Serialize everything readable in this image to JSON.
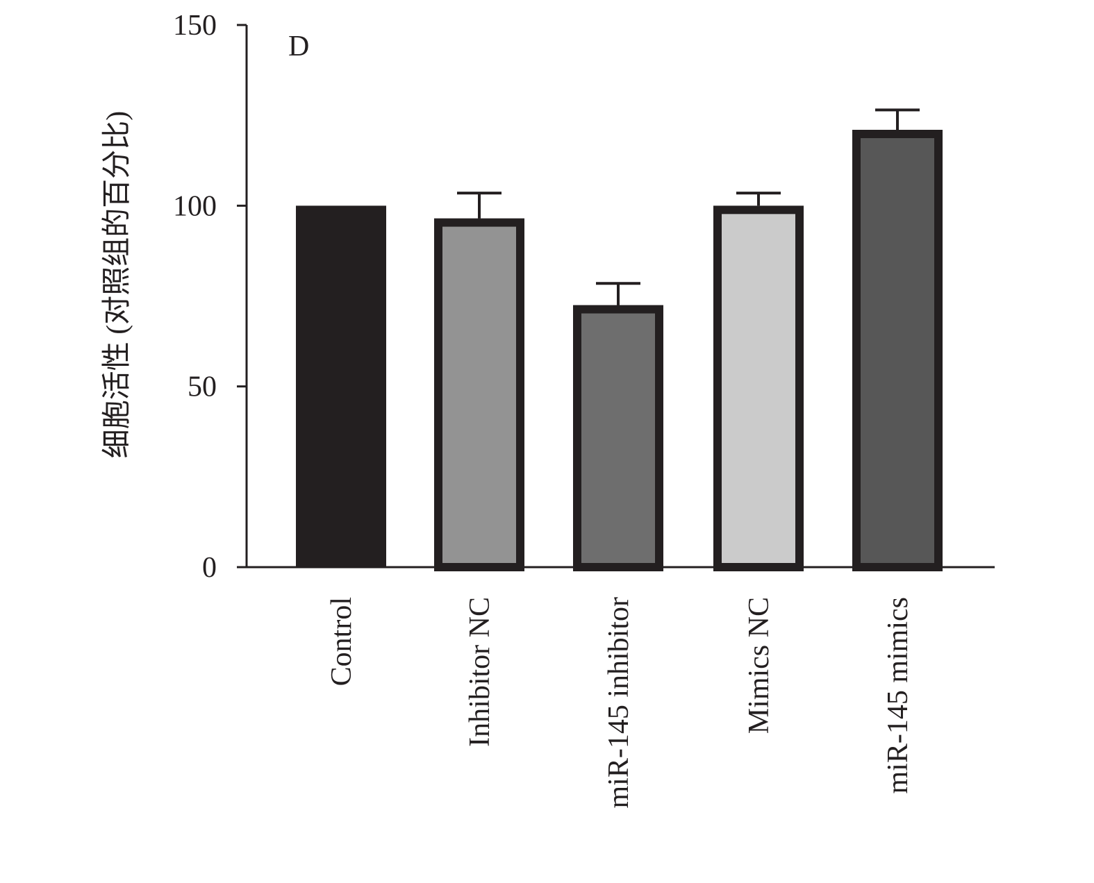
{
  "chart_data": {
    "type": "bar",
    "panel_label": "D",
    "title": "",
    "xlabel": "",
    "ylabel": "细胞活性 (对照组的百分比)",
    "ylim": [
      0,
      150
    ],
    "yticks": [
      0,
      50,
      100,
      150
    ],
    "grid": false,
    "legend": "none",
    "categories": [
      "Control",
      "Inhibitor NC",
      "miR-145 inhibitor",
      "Mimics NC",
      "miR-145 mimics"
    ],
    "values": [
      100,
      96.5,
      72.5,
      100,
      121
    ],
    "error_upper": [
      null,
      103.5,
      78.5,
      103.5,
      126.5
    ],
    "colors": [
      "#231f20",
      "#939393",
      "#6e6e6e",
      "#cbcbcb",
      "#575757"
    ],
    "border_color": "#231f20"
  }
}
